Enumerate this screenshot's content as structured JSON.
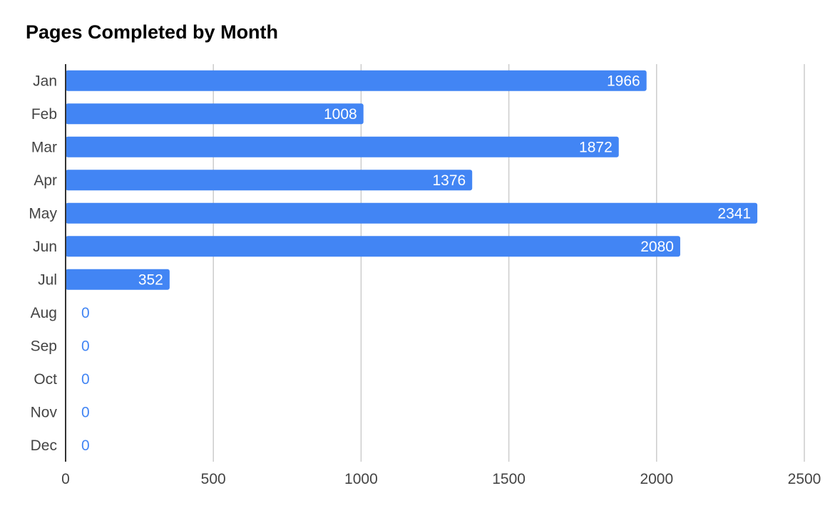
{
  "chart_data": {
    "type": "bar",
    "orientation": "horizontal",
    "title": "Pages Completed by Month",
    "xlabel": "",
    "ylabel": "",
    "categories": [
      "Jan",
      "Feb",
      "Mar",
      "Apr",
      "May",
      "Jun",
      "Jul",
      "Aug",
      "Sep",
      "Oct",
      "Nov",
      "Dec"
    ],
    "values": [
      1966,
      1008,
      1872,
      1376,
      2341,
      2080,
      352,
      0,
      0,
      0,
      0,
      0
    ],
    "xlim": [
      0,
      2500
    ],
    "xticks": [
      0,
      500,
      1000,
      1500,
      2000,
      2500
    ],
    "grid": true,
    "legend": "none",
    "data_labels": true,
    "colors": {
      "bar": "#4285f4",
      "label_inside": "#ffffff",
      "label_outside": "#4285f4",
      "gridline": "#cccccc",
      "axis": "#333333",
      "tick_text": "#444444"
    }
  }
}
